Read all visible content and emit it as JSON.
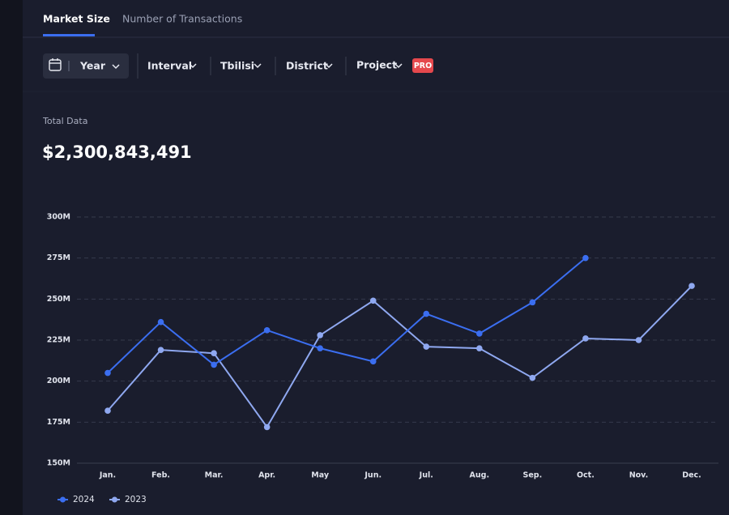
{
  "tabs": [
    "Market Size",
    "Number of Transactions"
  ],
  "filters": {
    "period": "Year",
    "interval": "Interval",
    "city": "Tbilisi",
    "district": "District",
    "project": "Project",
    "badge": "PRO"
  },
  "total": {
    "label": "Total Data",
    "value": "$2,300,843,491"
  },
  "chart_data": {
    "type": "line",
    "categories": [
      "Jan.",
      "Feb.",
      "Mar.",
      "Apr.",
      "May",
      "Jun.",
      "Jul.",
      "Aug.",
      "Sep.",
      "Oct.",
      "Nov.",
      "Dec."
    ],
    "series": [
      {
        "name": "2024",
        "color": "#3b6ef0",
        "values": [
          205,
          236,
          210,
          231,
          220,
          212,
          241,
          229,
          248,
          275,
          null,
          null
        ]
      },
      {
        "name": "2023",
        "color": "#8fa8f0",
        "values": [
          182,
          219,
          217,
          172,
          228,
          249,
          221,
          220,
          202,
          226,
          225,
          258
        ]
      }
    ],
    "ylim": [
      150,
      300
    ],
    "yticks": [
      {
        "value": 150,
        "label": "150M"
      },
      {
        "value": 175,
        "label": "175M"
      },
      {
        "value": 200,
        "label": "200M"
      },
      {
        "value": 225,
        "label": "225M"
      },
      {
        "value": 250,
        "label": "250M"
      },
      {
        "value": 275,
        "label": "275M"
      },
      {
        "value": 300,
        "label": "300M"
      }
    ],
    "grid": true,
    "legend": "bottom-left"
  }
}
